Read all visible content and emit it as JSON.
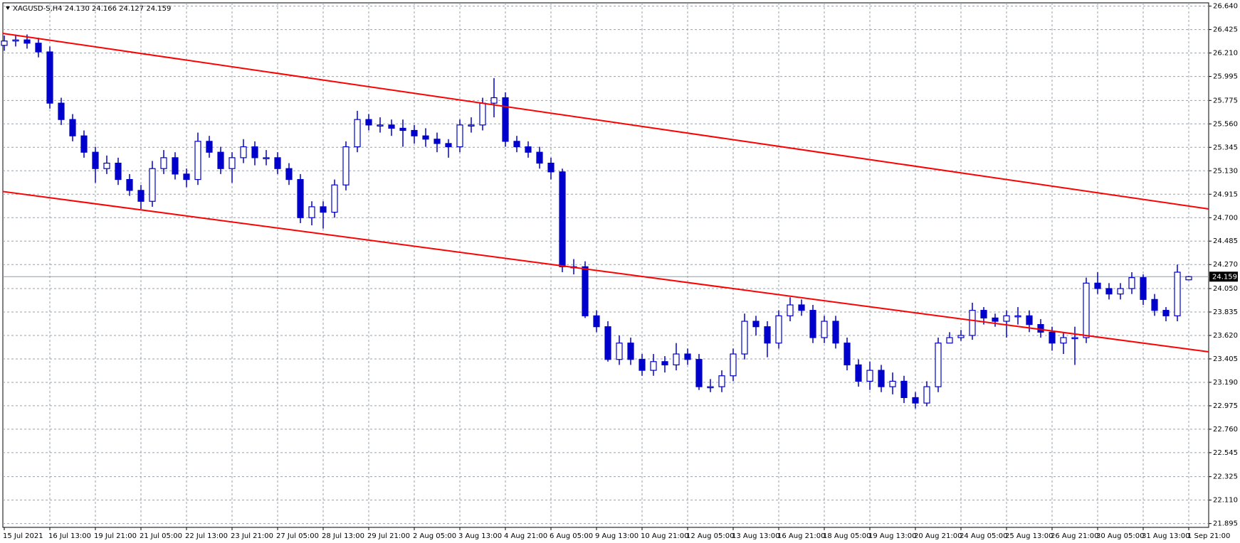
{
  "chart_data": {
    "type": "candlestick",
    "title": "XAGUSD-S,H4  24.130 24.166 24.127 24.159",
    "color": "#0000cd",
    "trend_color": "#ff0000",
    "grid": true,
    "xlim": [
      -0.125,
      105.75
    ],
    "ylim": [
      21.86,
      26.67
    ],
    "xticks": [
      {
        "value": 0,
        "label": "15 Jul 2021"
      },
      {
        "value": 4,
        "label": "16 Jul 13:00"
      },
      {
        "value": 8,
        "label": "19 Jul 21:00"
      },
      {
        "value": 12,
        "label": "21 Jul 05:00"
      },
      {
        "value": 16,
        "label": "22 Jul 13:00"
      },
      {
        "value": 20,
        "label": "23 Jul 21:00"
      },
      {
        "value": 24,
        "label": "27 Jul 05:00"
      },
      {
        "value": 28,
        "label": "28 Jul 13:00"
      },
      {
        "value": 32,
        "label": "29 Jul 21:00"
      },
      {
        "value": 36,
        "label": "2 Aug 05:00"
      },
      {
        "value": 40,
        "label": "3 Aug 13:00"
      },
      {
        "value": 44,
        "label": "4 Aug 21:00"
      },
      {
        "value": 48,
        "label": "6 Aug 05:00"
      },
      {
        "value": 52,
        "label": "9 Aug 13:00"
      },
      {
        "value": 56,
        "label": "10 Aug 21:00"
      },
      {
        "value": 60,
        "label": "12 Aug 05:00"
      },
      {
        "value": 64,
        "label": "13 Aug 13:00"
      },
      {
        "value": 68,
        "label": "16 Aug 21:00"
      },
      {
        "value": 72,
        "label": "18 Aug 05:00"
      },
      {
        "value": 76,
        "label": "19 Aug 13:00"
      },
      {
        "value": 80,
        "label": "20 Aug 21:00"
      },
      {
        "value": 84,
        "label": "24 Aug 05:00"
      },
      {
        "value": 88,
        "label": "25 Aug 13:00"
      },
      {
        "value": 92,
        "label": "26 Aug 21:00"
      },
      {
        "value": 96,
        "label": "30 Aug 05:00"
      },
      {
        "value": 100,
        "label": "31 Aug 13:00"
      },
      {
        "value": 104,
        "label": "1 Sep 21:00"
      }
    ],
    "yticks": [
      {
        "value": 26.64,
        "label": "26.640"
      },
      26.425,
      {
        "value": 26.21,
        "label": "26.210"
      },
      25.995,
      25.775,
      {
        "value": 25.56,
        "label": "25.560"
      },
      25.345,
      {
        "value": 25.13,
        "label": "25.130"
      },
      24.915,
      {
        "value": 24.7,
        "label": "24.700"
      },
      24.485,
      {
        "value": 24.27,
        "label": "24.270"
      },
      {
        "value": 24.05,
        "label": "24.050"
      },
      23.835,
      {
        "value": 23.62,
        "label": "23.620"
      },
      23.405,
      {
        "value": 23.19,
        "label": "23.190"
      },
      22.975,
      {
        "value": 22.76,
        "label": "22.760"
      },
      22.545,
      22.325,
      {
        "value": 22.11,
        "label": "22.110"
      },
      21.895
    ],
    "last_price": {
      "value": 24.159,
      "label": "24.159"
    },
    "trendlines": [
      {
        "x": [
          -0.125,
          105.75
        ],
        "y": [
          26.39,
          24.78
        ]
      },
      {
        "x": [
          -0.125,
          105.75
        ],
        "y": [
          24.94,
          23.47
        ]
      }
    ],
    "open": [
      26.28,
      26.32,
      26.33,
      26.3,
      26.22,
      25.75,
      25.6,
      25.45,
      25.3,
      25.15,
      25.2,
      25.05,
      24.95,
      24.85,
      25.15,
      25.25,
      25.1,
      25.05,
      25.4,
      25.3,
      25.15,
      25.25,
      25.35,
      25.25,
      25.25,
      25.15,
      25.05,
      24.7,
      24.8,
      24.75,
      25.0,
      25.35,
      25.6,
      25.55,
      25.55,
      25.52,
      25.5,
      25.45,
      25.42,
      25.38,
      25.35,
      25.55,
      25.55,
      25.75,
      25.8,
      25.4,
      25.35,
      25.3,
      25.2,
      25.12,
      24.25,
      24.25,
      23.8,
      23.7,
      23.4,
      23.55,
      23.4,
      23.3,
      23.38,
      23.35,
      23.45,
      23.4,
      23.15,
      23.15,
      23.25,
      23.45,
      23.75,
      23.7,
      23.55,
      23.8,
      23.9,
      23.85,
      23.6,
      23.75,
      23.55,
      23.35,
      23.2,
      23.3,
      23.15,
      23.2,
      23.05,
      23.0,
      23.15,
      23.55,
      23.6,
      23.62,
      23.85,
      23.78,
      23.75,
      23.8,
      23.8,
      23.72,
      23.65,
      23.55,
      23.6,
      23.6,
      24.1,
      24.05,
      24.0,
      24.05,
      24.15,
      23.95,
      23.85,
      23.8,
      24.13
    ],
    "high": [
      26.37,
      26.38,
      26.38,
      26.35,
      26.27,
      25.8,
      25.65,
      25.5,
      25.35,
      25.27,
      25.25,
      25.1,
      25.0,
      25.22,
      25.32,
      25.3,
      25.15,
      25.48,
      25.45,
      25.35,
      25.3,
      25.42,
      25.4,
      25.32,
      25.3,
      25.2,
      25.1,
      24.85,
      24.85,
      25.05,
      25.4,
      25.68,
      25.65,
      25.62,
      25.6,
      25.6,
      25.55,
      25.52,
      25.48,
      25.42,
      25.6,
      25.62,
      25.8,
      25.98,
      25.85,
      25.45,
      25.4,
      25.35,
      25.25,
      25.15,
      24.32,
      24.3,
      23.85,
      23.75,
      23.62,
      23.6,
      23.45,
      23.45,
      23.43,
      23.55,
      23.5,
      23.45,
      23.22,
      23.3,
      23.5,
      23.82,
      23.8,
      23.75,
      23.85,
      23.97,
      23.95,
      23.9,
      23.8,
      23.8,
      23.6,
      23.4,
      23.38,
      23.35,
      23.28,
      23.25,
      23.1,
      23.2,
      23.6,
      23.65,
      23.67,
      23.92,
      23.88,
      23.82,
      23.85,
      23.88,
      23.85,
      23.77,
      23.7,
      23.65,
      23.7,
      24.15,
      24.2,
      24.1,
      24.1,
      24.2,
      24.18,
      24.0,
      23.88,
      24.27,
      24.166
    ],
    "low": [
      26.23,
      26.27,
      26.25,
      26.17,
      25.7,
      25.55,
      25.4,
      25.25,
      25.02,
      25.1,
      25.0,
      24.9,
      24.78,
      24.8,
      25.1,
      25.05,
      24.98,
      25.0,
      25.25,
      25.1,
      25.02,
      25.2,
      25.18,
      25.18,
      25.1,
      25.0,
      24.65,
      24.63,
      24.6,
      24.7,
      24.95,
      25.3,
      25.5,
      25.48,
      25.45,
      25.35,
      25.38,
      25.35,
      25.3,
      25.25,
      25.3,
      25.48,
      25.5,
      25.62,
      25.35,
      25.3,
      25.25,
      25.15,
      25.05,
      24.2,
      24.18,
      23.78,
      23.65,
      23.38,
      23.35,
      23.35,
      23.25,
      23.25,
      23.28,
      23.3,
      23.35,
      23.12,
      23.1,
      23.1,
      23.2,
      23.4,
      23.62,
      23.42,
      23.5,
      23.75,
      23.8,
      23.55,
      23.55,
      23.5,
      23.3,
      23.15,
      23.12,
      23.1,
      23.08,
      23.0,
      22.95,
      22.97,
      23.1,
      23.55,
      23.57,
      23.58,
      23.72,
      23.7,
      23.6,
      23.72,
      23.65,
      23.6,
      23.48,
      23.45,
      23.35,
      23.55,
      24.0,
      23.95,
      23.95,
      24.0,
      23.9,
      23.8,
      23.75,
      23.75,
      24.127
    ],
    "close": [
      26.32,
      26.33,
      26.3,
      26.22,
      25.75,
      25.6,
      25.45,
      25.3,
      25.15,
      25.2,
      25.05,
      24.95,
      24.85,
      25.15,
      25.25,
      25.1,
      25.05,
      25.4,
      25.3,
      25.15,
      25.25,
      25.35,
      25.25,
      25.25,
      25.15,
      25.05,
      24.7,
      24.8,
      24.75,
      25.0,
      25.35,
      25.6,
      25.55,
      25.55,
      25.52,
      25.5,
      25.45,
      25.42,
      25.38,
      25.35,
      25.55,
      25.55,
      25.75,
      25.8,
      25.4,
      25.35,
      25.3,
      25.2,
      25.12,
      24.25,
      24.25,
      23.8,
      23.7,
      23.4,
      23.55,
      23.4,
      23.3,
      23.38,
      23.35,
      23.45,
      23.4,
      23.15,
      23.15,
      23.25,
      23.45,
      23.75,
      23.7,
      23.55,
      23.8,
      23.9,
      23.85,
      23.6,
      23.75,
      23.55,
      23.35,
      23.2,
      23.3,
      23.15,
      23.2,
      23.05,
      23.0,
      23.15,
      23.55,
      23.6,
      23.62,
      23.85,
      23.78,
      23.75,
      23.8,
      23.8,
      23.72,
      23.65,
      23.55,
      23.6,
      23.6,
      24.1,
      24.05,
      24.0,
      24.05,
      24.15,
      23.95,
      23.85,
      23.8,
      24.2,
      24.159
    ]
  }
}
